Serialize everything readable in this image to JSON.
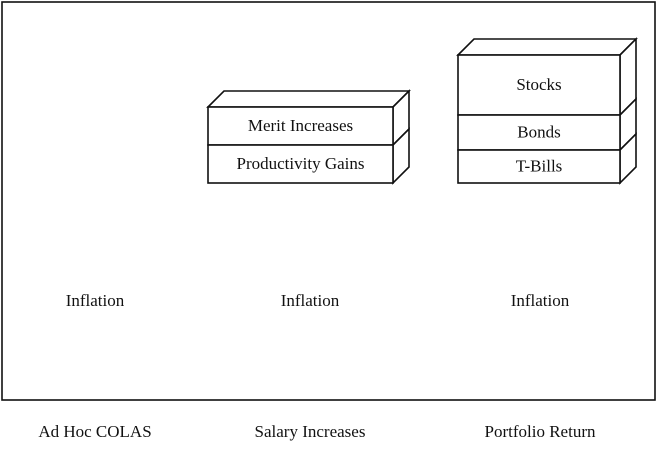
{
  "columns": [
    {
      "caption": "Ad Hoc COLAS",
      "base": "Inflation",
      "boxes": []
    },
    {
      "caption": "Salary Increases",
      "base": "Inflation",
      "boxes": [
        "Merit Increases",
        "Productivity Gains"
      ]
    },
    {
      "caption": "Portfolio Return",
      "base": "Inflation",
      "boxes": [
        "Stocks",
        "Bonds",
        "T-Bills"
      ]
    }
  ]
}
